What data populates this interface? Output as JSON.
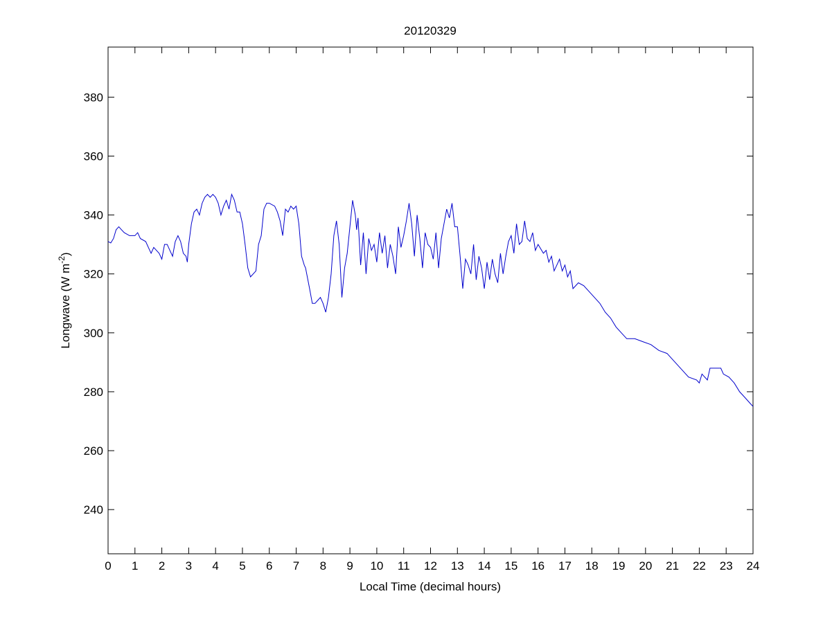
{
  "chart_data": {
    "type": "line",
    "title": "20120329",
    "xlabel": "Local Time (decimal hours)",
    "ylabel": {
      "main": "Longwave (W m",
      "sup": "-2",
      "close": ")"
    },
    "xlim": [
      0,
      24
    ],
    "ylim": [
      225,
      397
    ],
    "xticks": [
      0,
      1,
      2,
      3,
      4,
      5,
      6,
      7,
      8,
      9,
      10,
      11,
      12,
      13,
      14,
      15,
      16,
      17,
      18,
      19,
      20,
      21,
      22,
      23,
      24
    ],
    "yticks": [
      240,
      260,
      280,
      300,
      320,
      340,
      360,
      380
    ],
    "grid": false,
    "line_color": "#0000cc",
    "series": [
      {
        "name": "Longwave",
        "x": [
          0,
          0.1,
          0.2,
          0.3,
          0.4,
          0.5,
          0.6,
          0.8,
          1.0,
          1.1,
          1.2,
          1.4,
          1.5,
          1.6,
          1.7,
          1.8,
          1.9,
          2.0,
          2.1,
          2.2,
          2.3,
          2.4,
          2.5,
          2.6,
          2.7,
          2.8,
          2.9,
          2.95,
          3.0,
          3.1,
          3.2,
          3.3,
          3.4,
          3.5,
          3.6,
          3.7,
          3.8,
          3.9,
          4.0,
          4.1,
          4.2,
          4.3,
          4.4,
          4.5,
          4.6,
          4.7,
          4.8,
          4.9,
          5.0,
          5.1,
          5.2,
          5.3,
          5.5,
          5.6,
          5.7,
          5.8,
          5.9,
          6.0,
          6.2,
          6.3,
          6.4,
          6.5,
          6.6,
          6.7,
          6.8,
          6.9,
          7.0,
          7.1,
          7.2,
          7.3,
          7.35,
          7.5,
          7.6,
          7.7,
          7.8,
          7.9,
          8.0,
          8.1,
          8.2,
          8.3,
          8.4,
          8.5,
          8.6,
          8.7,
          8.8,
          8.9,
          9.0,
          9.1,
          9.2,
          9.25,
          9.3,
          9.4,
          9.5,
          9.6,
          9.7,
          9.8,
          9.9,
          10.0,
          10.1,
          10.2,
          10.3,
          10.4,
          10.5,
          10.6,
          10.7,
          10.8,
          10.9,
          11.0,
          11.1,
          11.2,
          11.3,
          11.4,
          11.5,
          11.6,
          11.7,
          11.8,
          11.9,
          12.0,
          12.1,
          12.2,
          12.3,
          12.4,
          12.5,
          12.6,
          12.7,
          12.8,
          12.9,
          13.0,
          13.1,
          13.2,
          13.3,
          13.4,
          13.5,
          13.6,
          13.7,
          13.8,
          13.9,
          14.0,
          14.1,
          14.2,
          14.3,
          14.4,
          14.5,
          14.6,
          14.7,
          14.8,
          14.9,
          15.0,
          15.1,
          15.2,
          15.3,
          15.4,
          15.5,
          15.6,
          15.7,
          15.8,
          15.9,
          16.0,
          16.2,
          16.3,
          16.4,
          16.5,
          16.6,
          16.8,
          16.9,
          17.0,
          17.1,
          17.2,
          17.3,
          17.5,
          17.7,
          17.9,
          18.1,
          18.3,
          18.5,
          18.7,
          18.9,
          19.1,
          19.3,
          19.6,
          19.9,
          20.2,
          20.5,
          20.8,
          21.0,
          21.3,
          21.6,
          21.9,
          22.0,
          22.1,
          22.3,
          22.4,
          22.6,
          22.8,
          22.9,
          23.1,
          23.3,
          23.5,
          23.7,
          23.9,
          24.0
        ],
        "y": [
          331,
          330.5,
          332,
          335,
          336,
          335,
          334,
          333,
          333,
          334,
          332,
          331,
          329,
          327,
          329,
          328,
          327,
          325,
          330,
          330,
          328,
          326,
          331,
          333,
          331,
          327,
          326,
          324,
          330,
          337,
          341,
          342,
          340,
          344,
          346,
          347,
          346,
          347,
          346,
          344,
          340,
          343,
          345,
          342,
          347,
          345,
          341,
          341,
          337,
          330,
          322,
          319,
          321,
          330,
          333,
          342,
          344,
          344,
          343,
          341,
          338,
          333,
          342,
          341,
          343,
          342,
          343,
          337,
          326,
          323,
          322,
          315,
          310,
          310,
          311,
          312,
          310,
          307,
          312,
          320,
          333,
          338,
          330,
          312,
          322,
          327,
          336,
          345,
          340,
          335,
          339,
          323,
          334,
          320,
          332,
          328,
          330,
          324,
          334,
          327,
          333,
          322,
          330,
          326,
          320,
          336,
          329,
          333,
          338,
          344,
          337,
          326,
          340,
          332,
          322,
          334,
          330,
          329,
          325,
          334,
          322,
          332,
          337,
          342,
          339,
          344,
          336,
          336,
          326,
          315,
          325,
          323,
          320,
          330,
          318,
          326,
          322,
          315,
          324,
          318,
          325,
          320,
          317,
          327,
          320,
          326,
          331,
          333,
          327,
          337,
          330,
          331,
          338,
          332,
          331,
          334,
          328,
          330,
          327,
          328,
          324,
          326,
          321,
          325,
          321,
          323,
          319,
          321,
          315,
          317,
          316,
          314,
          312,
          310,
          307,
          305,
          302,
          300,
          298,
          298,
          297,
          296,
          294,
          293,
          291,
          288,
          285,
          284,
          283,
          286,
          284,
          288,
          288,
          288,
          286,
          285,
          283,
          280,
          278,
          276,
          275
        ]
      }
    ]
  }
}
